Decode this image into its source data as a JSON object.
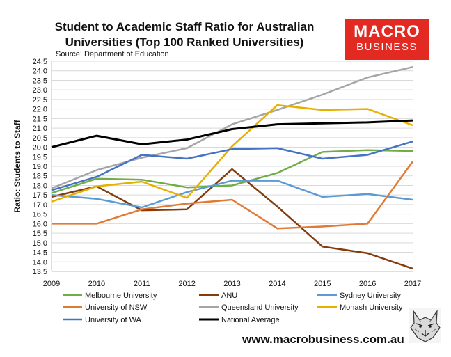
{
  "header": {
    "title_line1": "Student to Academic Staff Ratio for Australian",
    "title_line2": "Universities (Top 100 Ranked Universities)",
    "source": "Source: Department of Education"
  },
  "logo": {
    "line1": "MACRO",
    "line2": "BUSINESS",
    "color": "#e32a22"
  },
  "footer": {
    "website": "www.macrobusiness.com.au"
  },
  "chart_data": {
    "type": "line",
    "title": "Student to Academic Staff Ratio for Australian Universities (Top 100 Ranked Universities)",
    "xlabel": "",
    "ylabel": "Ratio: Students to Staff",
    "x": [
      "2009",
      "2010",
      "2011",
      "2012",
      "2013",
      "2014",
      "2015",
      "2016",
      "2017"
    ],
    "ylim": [
      13.5,
      24.5
    ],
    "ytick_step": 0.5,
    "grid": true,
    "legend_position": "bottom",
    "series": [
      {
        "name": "Melbourne University",
        "color": "#70ad47",
        "values": [
          17.6,
          18.35,
          18.3,
          17.9,
          18.0,
          18.65,
          19.75,
          19.85,
          19.8
        ]
      },
      {
        "name": "ANU",
        "color": "#843c0c",
        "values": [
          17.4,
          17.95,
          16.7,
          16.75,
          18.85,
          16.9,
          14.8,
          14.45,
          13.65
        ]
      },
      {
        "name": "Sydney University",
        "color": "#5b9bd5",
        "values": [
          17.5,
          17.3,
          16.85,
          17.65,
          18.25,
          18.25,
          17.4,
          17.55,
          17.25
        ]
      },
      {
        "name": "University of NSW",
        "color": "#e07a36",
        "values": [
          16.0,
          16.0,
          16.75,
          17.05,
          17.25,
          15.75,
          15.85,
          16.0,
          19.25
        ]
      },
      {
        "name": "Queensland University",
        "color": "#a5a5a5",
        "values": [
          17.85,
          18.8,
          19.45,
          19.95,
          21.2,
          21.95,
          22.75,
          23.65,
          24.2
        ]
      },
      {
        "name": "Monash University",
        "color": "#e6b000",
        "values": [
          17.15,
          17.95,
          18.2,
          17.35,
          20.05,
          22.2,
          21.95,
          22.0,
          21.15
        ]
      },
      {
        "name": "University of WA",
        "color": "#4472c4",
        "values": [
          17.75,
          18.45,
          19.6,
          19.4,
          19.9,
          19.95,
          19.4,
          19.6,
          20.3
        ]
      },
      {
        "name": "National Average",
        "color": "#000000",
        "values": [
          20.0,
          20.6,
          20.15,
          20.4,
          20.95,
          21.2,
          21.25,
          21.3,
          21.4
        ]
      }
    ]
  }
}
